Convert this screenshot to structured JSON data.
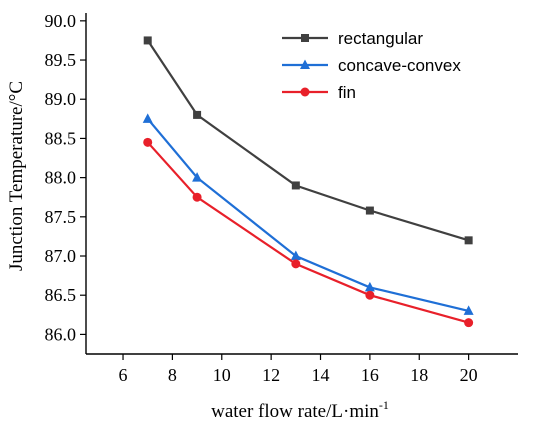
{
  "chart_data": {
    "type": "line",
    "xlabel": "water flow rate/L·min",
    "xlabel_sup": "-1",
    "ylabel": "Junction Temperature/°C",
    "xlim": [
      4.5,
      22
    ],
    "ylim": [
      85.75,
      90.1
    ],
    "x_ticks": [
      6,
      8,
      10,
      12,
      14,
      16,
      18,
      20
    ],
    "x_tick_labels": [
      "6",
      "8",
      "10",
      "12",
      "14",
      "16",
      "18",
      "20"
    ],
    "y_ticks": [
      86.0,
      86.5,
      87.0,
      87.5,
      88.0,
      88.5,
      89.0,
      89.5,
      90.0
    ],
    "y_tick_labels": [
      "86.0",
      "86.5",
      "87.0",
      "87.5",
      "88.0",
      "88.5",
      "89.0",
      "89.5",
      "90.0"
    ],
    "grid": false,
    "legend_position": "top-right",
    "x": [
      7,
      9,
      13,
      16,
      20
    ],
    "series": [
      {
        "name": "rectangular",
        "values": [
          89.75,
          88.8,
          87.9,
          87.58,
          87.2
        ],
        "color": "#404040",
        "marker": "square"
      },
      {
        "name": "concave-convex",
        "values": [
          88.75,
          88.0,
          87.0,
          86.6,
          86.3
        ],
        "color": "#1f6fd6",
        "marker": "triangle"
      },
      {
        "name": "fin",
        "values": [
          88.45,
          87.75,
          86.9,
          86.5,
          86.15
        ],
        "color": "#e8202a",
        "marker": "circle"
      }
    ]
  }
}
